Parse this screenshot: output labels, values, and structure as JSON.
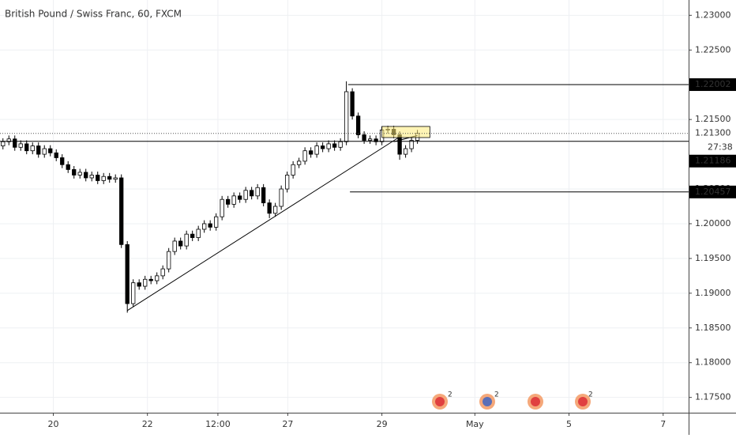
{
  "chart_data": {
    "type": "candlestick",
    "title": "British Pound / Swiss Franc, 60, FXCM",
    "up_color": "#ffffff",
    "down_color": "#000000",
    "open": [
      1.2112,
      1.2118,
      1.2122,
      1.211,
      1.2115,
      1.2105,
      1.2112,
      1.21,
      1.2108,
      1.2102,
      1.2095,
      1.2085,
      1.2078,
      1.207,
      1.2074,
      1.2066,
      1.207,
      1.2062,
      1.2068,
      1.2064,
      1.2066,
      1.197,
      1.1885,
      1.1915,
      1.191,
      1.192,
      1.1918,
      1.1925,
      1.1935,
      1.196,
      1.1975,
      1.1968,
      1.1985,
      1.198,
      1.1992,
      1.2,
      1.1995,
      1.201,
      1.2035,
      1.2028,
      1.204,
      1.2035,
      1.2048,
      1.204,
      1.2052,
      1.203,
      1.2015,
      1.2025,
      1.205,
      1.207,
      1.2085,
      1.209,
      1.2105,
      1.21,
      1.2112,
      1.2108,
      1.2115,
      1.211,
      1.2118,
      1.219,
      1.2155,
      1.2128,
      1.212,
      1.2122,
      1.2118,
      1.2135,
      1.2136,
      1.2128,
      1.21,
      1.2108,
      1.212
    ],
    "high": [
      1.2123,
      1.2127,
      1.2127,
      1.212,
      1.212,
      1.2117,
      1.2117,
      1.2113,
      1.2113,
      1.2107,
      1.21,
      1.209,
      1.2083,
      1.2079,
      1.2079,
      1.2075,
      1.2075,
      1.2073,
      1.2073,
      1.2071,
      1.2071,
      1.1975,
      1.192,
      1.192,
      1.1925,
      1.1925,
      1.193,
      1.194,
      1.1965,
      1.198,
      1.198,
      1.199,
      1.199,
      1.1997,
      1.2005,
      1.2005,
      1.2015,
      1.204,
      1.204,
      1.2045,
      1.2045,
      1.2053,
      1.2053,
      1.2057,
      1.2057,
      1.2035,
      1.203,
      1.2055,
      1.2075,
      1.209,
      1.2095,
      1.211,
      1.211,
      1.2117,
      1.2117,
      1.212,
      1.212,
      1.2123,
      1.2205,
      1.2195,
      1.216,
      1.2133,
      1.2127,
      1.2127,
      1.214,
      1.2141,
      1.2141,
      1.2133,
      1.2113,
      1.2125,
      1.2135
    ],
    "low": [
      1.2107,
      1.2113,
      1.2105,
      1.2105,
      1.21,
      1.21,
      1.2095,
      1.2095,
      1.2097,
      1.209,
      1.208,
      1.2073,
      1.2065,
      1.2065,
      1.2061,
      1.2061,
      1.2057,
      1.2057,
      1.2059,
      1.2059,
      1.1965,
      1.1872,
      1.188,
      1.1905,
      1.1905,
      1.1913,
      1.1913,
      1.192,
      1.193,
      1.1955,
      1.1963,
      1.1963,
      1.1975,
      1.1975,
      1.1987,
      1.199,
      1.199,
      1.2005,
      1.2023,
      1.2023,
      1.203,
      1.203,
      1.2035,
      1.2035,
      1.2025,
      1.2008,
      1.201,
      1.202,
      1.2045,
      1.2065,
      1.208,
      1.2085,
      1.2095,
      1.2095,
      1.2103,
      1.2103,
      1.2105,
      1.2105,
      1.2113,
      1.215,
      1.2123,
      1.2115,
      1.2115,
      1.2113,
      1.2113,
      1.213,
      1.2123,
      1.2092,
      1.2095,
      1.2103,
      1.2115
    ],
    "close": [
      1.2118,
      1.2122,
      1.211,
      1.2115,
      1.2105,
      1.2112,
      1.21,
      1.2108,
      1.2102,
      1.2095,
      1.2085,
      1.2078,
      1.207,
      1.2074,
      1.2066,
      1.207,
      1.2062,
      1.2068,
      1.2064,
      1.2066,
      1.197,
      1.1885,
      1.1915,
      1.191,
      1.192,
      1.1918,
      1.1925,
      1.1935,
      1.196,
      1.1975,
      1.1968,
      1.1985,
      1.198,
      1.1992,
      1.2,
      1.1995,
      1.201,
      1.2035,
      1.2028,
      1.204,
      1.2035,
      1.2048,
      1.204,
      1.2052,
      1.203,
      1.2015,
      1.2025,
      1.205,
      1.207,
      1.2085,
      1.209,
      1.2105,
      1.21,
      1.2112,
      1.2108,
      1.2115,
      1.211,
      1.2118,
      1.219,
      1.2155,
      1.2128,
      1.212,
      1.2122,
      1.2118,
      1.2135,
      1.2136,
      1.2128,
      1.21,
      1.2108,
      1.212,
      1.213
    ],
    "xlim": [
      -0.5,
      115.8
    ],
    "xticks": [
      {
        "value": 8.5,
        "label": "20"
      },
      {
        "value": 24.4,
        "label": "22"
      },
      {
        "value": 36.3,
        "label": "12:00"
      },
      {
        "value": 48.1,
        "label": "27"
      },
      {
        "value": 64,
        "label": "29"
      },
      {
        "value": 79.7,
        "label": "May"
      },
      {
        "value": 95.6,
        "label": "5"
      },
      {
        "value": 111.5,
        "label": "7"
      }
    ],
    "ylim": [
      1.1728,
      1.2322
    ],
    "yticks": [
      {
        "value": 1.175,
        "label": "1.17500"
      },
      {
        "value": 1.18,
        "label": "1.18000"
      },
      {
        "value": 1.185,
        "label": "1.18500"
      },
      {
        "value": 1.19,
        "label": "1.19000"
      },
      {
        "value": 1.195,
        "label": "1.19500"
      },
      {
        "value": 1.2,
        "label": "1.20000"
      },
      {
        "value": 1.205,
        "label": "1.20500"
      },
      {
        "value": 1.215,
        "label": "1.21500"
      },
      {
        "value": 1.225,
        "label": "1.22500"
      },
      {
        "value": 1.23,
        "label": "1.23000"
      }
    ],
    "grid": true,
    "levels": [
      {
        "value": 1.22002,
        "from": 58.3
      },
      {
        "value": 1.20457,
        "from": 58.6
      },
      {
        "value": 1.21186,
        "from": -0.5
      }
    ],
    "current_price": {
      "value": 1.213,
      "label": "1.21300"
    },
    "countdown": "27:38",
    "trendlines": [
      {
        "x1": 21,
        "y1": 1.1875,
        "x2": 67,
        "y2": 1.2125
      },
      {
        "x1": 66,
        "y1": 1.2118,
        "x2": 70,
        "y2": 1.2127
      }
    ],
    "box": {
      "x1": 64,
      "x2": 72.1,
      "y1": 1.2124,
      "y2": 1.214
    },
    "event_labels": [
      "2",
      "2",
      "2"
    ]
  }
}
